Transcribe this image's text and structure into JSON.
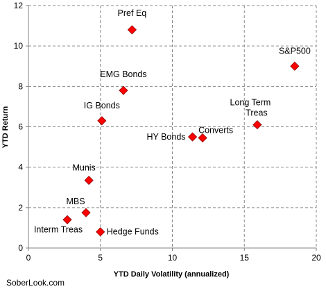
{
  "chart_data": {
    "type": "scatter",
    "title": "",
    "xlabel": "YTD Daily Volatility (annualized)",
    "ylabel": "YTD Return",
    "xlim": [
      0,
      20
    ],
    "ylim": [
      0,
      12
    ],
    "xticks": [
      0,
      5,
      10,
      15,
      20
    ],
    "yticks": [
      0,
      2,
      4,
      6,
      8,
      10,
      12
    ],
    "grid": "dashed",
    "legend": "none",
    "marker": "diamond",
    "marker_color": "#ff0000",
    "marker_edge_color": "#8b0000",
    "points": [
      {
        "label": "Pref Eq",
        "x": 7.2,
        "y": 10.8
      },
      {
        "label": "S&P500",
        "x": 18.5,
        "y": 9.0
      },
      {
        "label": "EMG Bonds",
        "x": 6.6,
        "y": 7.8
      },
      {
        "label": "IG Bonds",
        "x": 5.1,
        "y": 6.3
      },
      {
        "label": "HY Bonds",
        "x": 11.4,
        "y": 5.5
      },
      {
        "label": "Converts",
        "x": 12.1,
        "y": 5.45
      },
      {
        "label": "Long Term Treas",
        "x": 15.9,
        "y": 6.1
      },
      {
        "label": "Munis",
        "x": 4.2,
        "y": 3.35
      },
      {
        "label": "MBS",
        "x": 4.0,
        "y": 1.75
      },
      {
        "label": "Interm Treas",
        "x": 2.7,
        "y": 1.4
      },
      {
        "label": "Hedge Funds",
        "x": 5.0,
        "y": 0.8
      }
    ]
  },
  "credit": "SoberLook.com"
}
